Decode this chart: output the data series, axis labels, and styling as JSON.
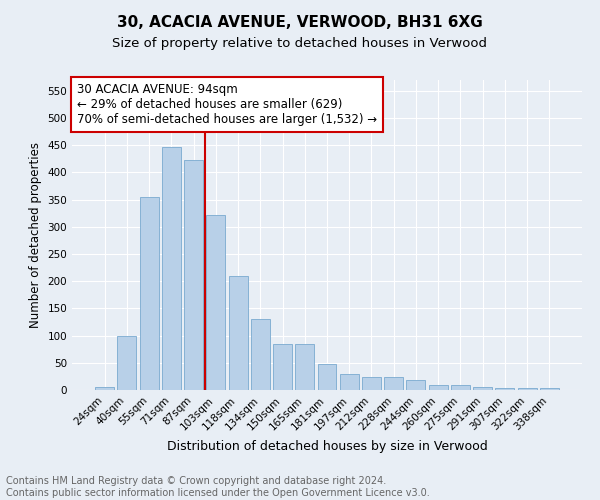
{
  "title": "30, ACACIA AVENUE, VERWOOD, BH31 6XG",
  "subtitle": "Size of property relative to detached houses in Verwood",
  "xlabel": "Distribution of detached houses by size in Verwood",
  "ylabel": "Number of detached properties",
  "footer_line1": "Contains HM Land Registry data © Crown copyright and database right 2024.",
  "footer_line2": "Contains public sector information licensed under the Open Government Licence v3.0.",
  "bar_labels": [
    "24sqm",
    "40sqm",
    "55sqm",
    "71sqm",
    "87sqm",
    "103sqm",
    "118sqm",
    "134sqm",
    "150sqm",
    "165sqm",
    "181sqm",
    "197sqm",
    "212sqm",
    "228sqm",
    "244sqm",
    "260sqm",
    "275sqm",
    "291sqm",
    "307sqm",
    "322sqm",
    "338sqm"
  ],
  "bar_values": [
    5,
    100,
    355,
    447,
    423,
    322,
    209,
    130,
    85,
    85,
    48,
    30,
    23,
    23,
    19,
    10,
    10,
    5,
    3,
    3,
    3
  ],
  "bar_color": "#b8d0e8",
  "bar_edgecolor": "#7aaad0",
  "ylim": [
    0,
    570
  ],
  "yticks": [
    0,
    50,
    100,
    150,
    200,
    250,
    300,
    350,
    400,
    450,
    500,
    550
  ],
  "vline_color": "#cc0000",
  "vline_pos": 4.5,
  "annotation_text_line1": "30 ACACIA AVENUE: 94sqm",
  "annotation_text_line2": "← 29% of detached houses are smaller (629)",
  "annotation_text_line3": "70% of semi-detached houses are larger (1,532) →",
  "bg_color": "#e8eef5",
  "grid_color": "#ffffff",
  "title_fontsize": 11,
  "subtitle_fontsize": 9.5,
  "xlabel_fontsize": 9,
  "ylabel_fontsize": 8.5,
  "tick_fontsize": 7.5,
  "annotation_fontsize": 8.5,
  "footer_fontsize": 7
}
